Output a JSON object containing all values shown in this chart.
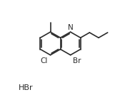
{
  "bg_color": "#ffffff",
  "line_color": "#2a2a2a",
  "text_color": "#2a2a2a",
  "line_width": 1.2,
  "font_size": 7.5,
  "figsize": [
    1.82,
    1.44
  ],
  "dpi": 100,
  "hbr_label": "HBr",
  "N_label": "N",
  "Br_label": "Br",
  "Cl_label": "Cl"
}
